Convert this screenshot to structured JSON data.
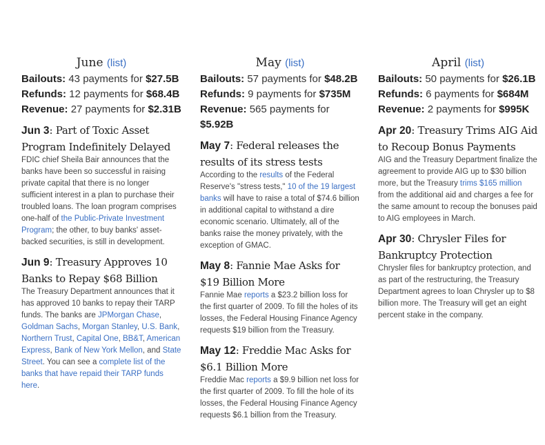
{
  "colors": {
    "link": "#3a6fc4",
    "text": "#444444"
  },
  "columns": [
    {
      "month": "June",
      "list_label": "(list)",
      "stats": [
        {
          "label": "Bailouts:",
          "text": " 43 payments for ",
          "amount": "$27.5B"
        },
        {
          "label": "Refunds:",
          "text": " 12 payments for ",
          "amount": "$68.4B"
        },
        {
          "label": "Revenue:",
          "text": " 27 payments for ",
          "amount": "$2.31B"
        }
      ],
      "events": [
        {
          "date": "Jun 3",
          "title": ": Part of Toxic Asset Program Indefinitely Delayed",
          "body": [
            {
              "t": "FDIC chief Sheila Bair announces that the banks have been so successful in raising private capital that there is no longer sufficient interest in a plan to purchase their troubled loans. The loan program comprises one-half of "
            },
            {
              "t": "the Public-Private Investment Program",
              "link": true
            },
            {
              "t": "; the other, to buy banks' asset-backed securities, is still in development."
            }
          ]
        },
        {
          "date": "Jun 9",
          "title": ": Treasury Approves 10 Banks to Repay $68 Billion",
          "body": [
            {
              "t": "The Treasury Department announces that it has approved 10 banks to repay their TARP funds. The banks are "
            },
            {
              "t": "JPMorgan Chase",
              "link": true
            },
            {
              "t": ", "
            },
            {
              "t": "Goldman Sachs",
              "link": true
            },
            {
              "t": ", "
            },
            {
              "t": "Morgan Stanley",
              "link": true
            },
            {
              "t": ", "
            },
            {
              "t": "U.S. Bank",
              "link": true
            },
            {
              "t": ", "
            },
            {
              "t": "Northern Trust",
              "link": true
            },
            {
              "t": ", "
            },
            {
              "t": "Capital One",
              "link": true
            },
            {
              "t": ", "
            },
            {
              "t": "BB&T",
              "link": true
            },
            {
              "t": ", "
            },
            {
              "t": "American Express",
              "link": true
            },
            {
              "t": ", "
            },
            {
              "t": "Bank of New York Mellon",
              "link": true
            },
            {
              "t": ", and "
            },
            {
              "t": "State Street",
              "link": true
            },
            {
              "t": ". You can see a "
            },
            {
              "t": "complete list of the banks that have repaid their TARP funds here",
              "link": true
            },
            {
              "t": "."
            }
          ]
        }
      ]
    },
    {
      "month": "May",
      "list_label": "(list)",
      "stats": [
        {
          "label": "Bailouts:",
          "text": " 57 payments for ",
          "amount": "$48.2B"
        },
        {
          "label": "Refunds:",
          "text": " 9 payments for ",
          "amount": "$735M"
        },
        {
          "label": "Revenue:",
          "text": " 565 payments for ",
          "amount": "$5.92B"
        }
      ],
      "events": [
        {
          "date": "May 7",
          "title": ": Federal releases the results of its stress tests",
          "body": [
            {
              "t": "According to the "
            },
            {
              "t": "results",
              "link": true
            },
            {
              "t": " of the Federal Reserve's \"stress tests,\" "
            },
            {
              "t": "10 of the 19 largest banks",
              "link": true
            },
            {
              "t": " will have to raise a total of $74.6 billion in additional capital to withstand a dire economic scenario. Ultimately, all of the banks raise the money privately, with the exception of GMAC."
            }
          ]
        },
        {
          "date": "May 8",
          "title": ": Fannie Mae Asks for $19 Billion More",
          "body": [
            {
              "t": "Fannie Mae "
            },
            {
              "t": "reports",
              "link": true
            },
            {
              "t": " a $23.2 billion loss for the first quarter of 2009. To fill the holes of its losses, the Federal Housing Finance Agency requests $19 billion from the Treasury."
            }
          ]
        },
        {
          "date": "May 12",
          "title": ": Freddie Mac Asks for $6.1 Billion More",
          "body": [
            {
              "t": "Freddie Mac "
            },
            {
              "t": "reports",
              "link": true
            },
            {
              "t": " a $9.9 billion net loss for the first quarter of 2009. To fill the hole of its losses, the Federal Housing Finance Agency requests $6.1 billion from the Treasury."
            }
          ]
        }
      ]
    },
    {
      "month": "April",
      "list_label": "(list)",
      "stats": [
        {
          "label": "Bailouts:",
          "text": " 50 payments for ",
          "amount": "$26.1B"
        },
        {
          "label": "Refunds:",
          "text": " 6 payments for ",
          "amount": "$684M"
        },
        {
          "label": "Revenue:",
          "text": " 2 payments for ",
          "amount": "$995K"
        }
      ],
      "events": [
        {
          "date": "Apr 20",
          "title": ": Treasury Trims AIG Aid to Recoup Bonus Payments",
          "body": [
            {
              "t": "AIG and the Treasury Department finalize the agreement to provide AIG up to $30 billion more, but the Treasury "
            },
            {
              "t": "trims $165 million",
              "link": true
            },
            {
              "t": " from the additional aid and charges a fee for the same amount to recoup the bonuses paid to AIG employees in March."
            }
          ]
        },
        {
          "date": "Apr 30",
          "title": ": Chrysler Files for Bankruptcy Protection",
          "body": [
            {
              "t": "Chrysler files for bankruptcy protection, and as part of the restructuring, the Treasury Department agrees to loan Chrysler up to $8 billion more. The Treasury will get an eight percent stake in the company."
            }
          ]
        }
      ]
    }
  ]
}
